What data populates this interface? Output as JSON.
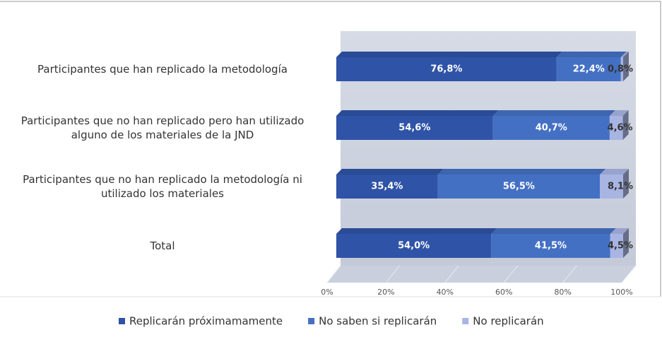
{
  "chart_data": {
    "type": "bar",
    "orientation": "horizontal",
    "stacked": true,
    "categories": [
      "Participantes que han replicado la metodología",
      "Participantes que no han replicado pero han utilizado alguno de los materiales de la JND",
      "Participantes que no han replicado la metodología ni utilizado los materiales",
      "Total"
    ],
    "series": [
      {
        "name": "Replicarán próximamamente",
        "color": "#2f53a6",
        "values": [
          76.8,
          54.6,
          35.4,
          54.0
        ],
        "value_labels": [
          "76,8%",
          "54,6%",
          "35,4%",
          "54,0%"
        ]
      },
      {
        "name": "No saben si replicarán",
        "color": "#4470c4",
        "values": [
          22.4,
          40.7,
          56.5,
          41.5
        ],
        "value_labels": [
          "22,4%",
          "40,7%",
          "56,5%",
          "41,5%"
        ]
      },
      {
        "name": "No replicarán",
        "color": "#a8b5e3",
        "values": [
          0.8,
          4.6,
          8.1,
          4.5
        ],
        "value_labels": [
          "0,8%",
          "4,6%",
          "8,1%",
          "4,5%"
        ]
      }
    ],
    "xlim": [
      0,
      100
    ],
    "xticks": [
      {
        "value": 0,
        "label": "0%"
      },
      {
        "value": 20,
        "label": "20%"
      },
      {
        "value": 40,
        "label": "40%"
      },
      {
        "value": 60,
        "label": "60%"
      },
      {
        "value": 80,
        "label": "80%"
      },
      {
        "value": 100,
        "label": "100%"
      }
    ],
    "grid": true,
    "legend": "bottom"
  }
}
